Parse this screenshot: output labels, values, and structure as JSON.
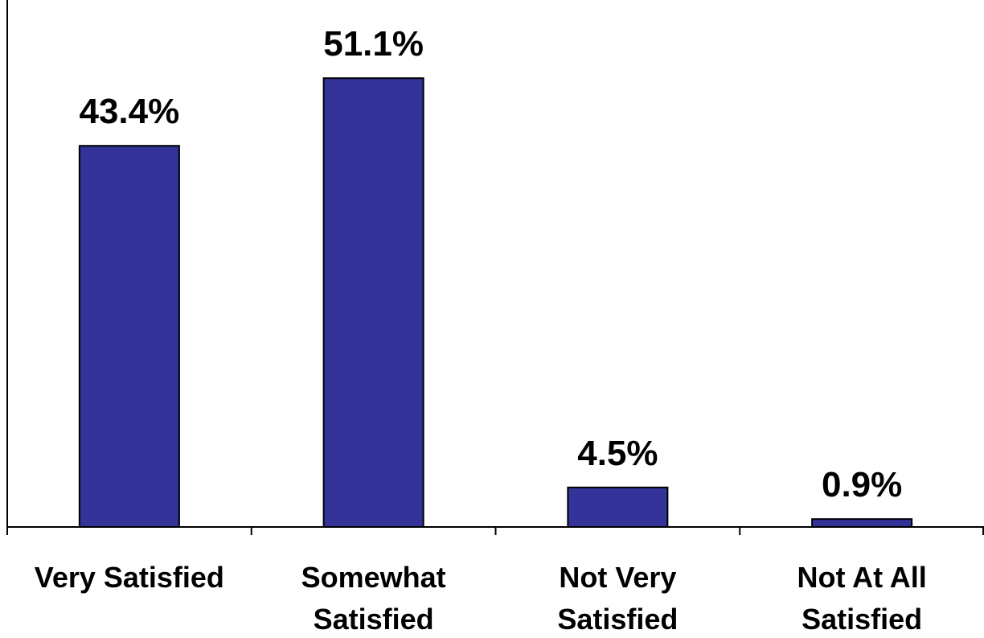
{
  "chart_data": {
    "type": "bar",
    "categories": [
      [
        "Very Satisfied"
      ],
      [
        "Somewhat",
        "Satisfied"
      ],
      [
        "Not Very",
        "Satisfied"
      ],
      [
        "Not At All",
        "Satisfied"
      ]
    ],
    "values": [
      43.4,
      51.1,
      4.5,
      0.9
    ],
    "data_labels": [
      "43.4%",
      "51.1%",
      "4.5%",
      "0.9%"
    ],
    "title": "",
    "xlabel": "",
    "ylabel": "",
    "ylim": [
      0,
      60
    ],
    "grid": false,
    "legend": "none",
    "bar_color": "#333399",
    "bar_edge_color": "#000000"
  }
}
